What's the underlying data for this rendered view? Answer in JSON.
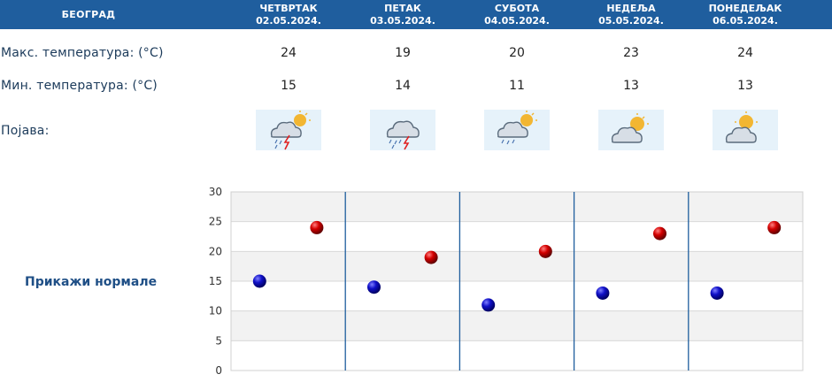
{
  "header": {
    "city": "БЕОГРАД",
    "days": [
      {
        "name": "ЧЕТВРТАК",
        "date": "02.05.2024."
      },
      {
        "name": "ПЕТАК",
        "date": "03.05.2024."
      },
      {
        "name": "СУБОТА",
        "date": "04.05.2024."
      },
      {
        "name": "НЕДЕЉА",
        "date": "05.05.2024."
      },
      {
        "name": "ПОНЕДЕЉАК",
        "date": "06.05.2024."
      }
    ]
  },
  "rows": {
    "max_label": "Макс. температура: (°C)",
    "min_label": "Мин. температура: (°C)",
    "phenomenon_label": "Појава:"
  },
  "max_temps": [
    "24",
    "19",
    "20",
    "23",
    "24"
  ],
  "min_temps": [
    "15",
    "14",
    "11",
    "13",
    "13"
  ],
  "weather_icons": [
    "thunderstorm-rain-sun-icon",
    "thunderstorm-rain-icon",
    "rain-cloud-sun-icon",
    "partly-cloudy-icon",
    "partly-cloudy-icon"
  ],
  "normals_link": "Прикажи нормале",
  "colors": {
    "header_bg": "#1f5e9e",
    "max_point": "#d40000",
    "min_point": "#1010c8",
    "day_divider": "#1f5e9e"
  },
  "chart_data": {
    "type": "scatter",
    "categories": [
      "02.05.2024.",
      "03.05.2024.",
      "04.05.2024.",
      "05.05.2024.",
      "06.05.2024."
    ],
    "series": [
      {
        "values": [
          15,
          14,
          11,
          13,
          13
        ]
      },
      {
        "values": [
          24,
          19,
          20,
          23,
          24
        ]
      }
    ],
    "ylim": [
      0,
      30
    ],
    "yticks": [
      "0",
      "5",
      "10",
      "15",
      "20",
      "25",
      "30"
    ],
    "grid": true,
    "alternating_bands": true
  }
}
